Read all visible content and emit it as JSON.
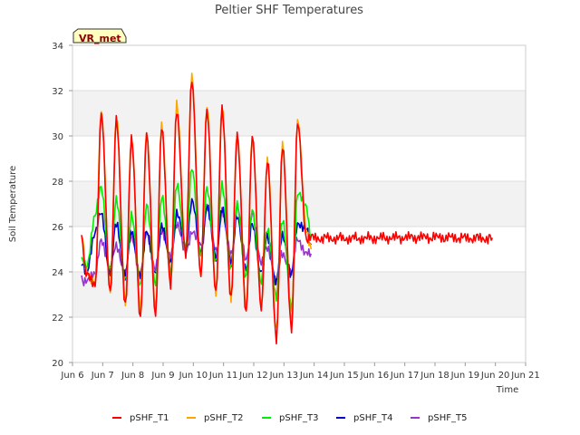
{
  "chart_data": {
    "type": "line",
    "title": "Peltier SHF Temperatures",
    "xlabel": "Time",
    "ylabel": "Soil Temperature",
    "badge": "VR_met",
    "ylim": [
      20,
      34
    ],
    "xlim": [
      6,
      21
    ],
    "yticks": [
      20,
      22,
      24,
      26,
      28,
      30,
      32,
      34
    ],
    "xticks": [
      {
        "v": 6,
        "label": "Jun 6"
      },
      {
        "v": 7,
        "label": "Jun 7"
      },
      {
        "v": 8,
        "label": "Jun 8"
      },
      {
        "v": 9,
        "label": "Jun 9"
      },
      {
        "v": 10,
        "label": "Jun 10"
      },
      {
        "v": 11,
        "label": "Jun 11"
      },
      {
        "v": 12,
        "label": "Jun 12"
      },
      {
        "v": 13,
        "label": "Jun 13"
      },
      {
        "v": 14,
        "label": "Jun 14"
      },
      {
        "v": 15,
        "label": "Jun 15"
      },
      {
        "v": 16,
        "label": "Jun 16"
      },
      {
        "v": 17,
        "label": "Jun 17"
      },
      {
        "v": 18,
        "label": "Jun 18"
      },
      {
        "v": 19,
        "label": "Jun 19"
      },
      {
        "v": 20,
        "label": "Jun 20"
      },
      {
        "v": 21,
        "label": "Jun 21"
      }
    ],
    "grid": true,
    "legend_position": "bottom",
    "series": [
      {
        "name": "pSHF_T1",
        "color": "#ff0000",
        "x": [
          6.3,
          6.45,
          6.75,
          6.95,
          7.25,
          7.45,
          7.75,
          7.95,
          8.25,
          8.45,
          8.75,
          8.95,
          9.25,
          9.45,
          9.75,
          9.95,
          10.25,
          10.45,
          10.75,
          10.95,
          11.25,
          11.45,
          11.75,
          11.95,
          12.25,
          12.45,
          12.75,
          12.95,
          13.25,
          13.45,
          13.75,
          13.95,
          14.25,
          14.45,
          14.75,
          14.95,
          15.25,
          15.45,
          15.75,
          15.95,
          16.25,
          16.45,
          16.75,
          16.95,
          17.25,
          17.45,
          17.75,
          17.95,
          18.25,
          18.45,
          18.75,
          18.95,
          19.25,
          19.45,
          19.75,
          19.9
        ],
        "y": [
          25.4,
          24.0,
          23.3,
          31.0,
          23.0,
          30.7,
          22.5,
          29.8,
          22.0,
          30.0,
          22.2,
          30.3,
          23.5,
          31.1,
          24.8,
          32.5,
          23.8,
          31.2,
          23.0,
          31.3,
          22.7,
          30.1,
          22.1,
          30.0,
          22.3,
          28.9,
          21.0,
          29.5,
          21.5,
          30.5,
          25.5,
          25.5,
          25.5,
          25.5,
          25.5,
          25.5,
          25.5,
          25.5,
          25.5,
          25.5,
          25.5,
          25.5,
          25.5,
          25.5,
          25.5,
          25.5,
          25.5,
          25.5,
          25.5,
          25.5,
          25.5,
          25.5,
          25.5,
          25.5,
          25.5,
          25.5
        ]
      },
      {
        "name": "pSHF_T2",
        "color": "#ffa500",
        "x": [
          6.3,
          6.45,
          6.75,
          6.95,
          7.25,
          7.45,
          7.75,
          7.95,
          8.25,
          8.45,
          8.75,
          8.95,
          9.25,
          9.45,
          9.75,
          9.95,
          10.25,
          10.45,
          10.75,
          10.95,
          11.25,
          11.45,
          11.75,
          11.95,
          12.25,
          12.45,
          12.75,
          12.95,
          13.25,
          13.45,
          13.75,
          13.9
        ],
        "y": [
          25.6,
          24.1,
          23.4,
          31.2,
          23.1,
          30.9,
          22.6,
          29.9,
          22.3,
          30.1,
          22.4,
          30.4,
          23.6,
          31.3,
          24.9,
          32.6,
          23.9,
          31.3,
          23.1,
          31.4,
          22.8,
          30.2,
          22.3,
          30.0,
          22.4,
          29.0,
          21.3,
          29.6,
          21.8,
          30.6,
          25.8,
          25.0
        ]
      },
      {
        "name": "pSHF_T3",
        "color": "#00ee00",
        "x": [
          6.3,
          6.45,
          6.75,
          6.95,
          7.25,
          7.45,
          7.75,
          7.95,
          8.25,
          8.45,
          8.75,
          8.95,
          9.25,
          9.45,
          9.75,
          9.95,
          10.25,
          10.45,
          10.75,
          10.95,
          11.25,
          11.45,
          11.75,
          11.95,
          12.25,
          12.45,
          12.75,
          12.95,
          13.25,
          13.45,
          13.75,
          13.9
        ],
        "y": [
          24.6,
          24.2,
          26.5,
          27.8,
          24.0,
          27.3,
          23.5,
          26.6,
          23.3,
          27.0,
          23.4,
          27.3,
          24.0,
          27.8,
          25.0,
          28.5,
          24.8,
          27.6,
          24.5,
          27.8,
          24.2,
          27.0,
          23.8,
          26.8,
          23.5,
          26.0,
          22.8,
          26.4,
          22.3,
          27.5,
          26.8,
          25.5
        ]
      },
      {
        "name": "pSHF_T4",
        "color": "#0000cc",
        "x": [
          6.3,
          6.45,
          6.75,
          6.95,
          7.25,
          7.45,
          7.75,
          7.95,
          8.25,
          8.45,
          8.75,
          8.95,
          9.25,
          9.45,
          9.75,
          9.95,
          10.25,
          10.45,
          10.75,
          10.95,
          11.25,
          11.45,
          11.75,
          11.95,
          12.25,
          12.45,
          12.75,
          12.95,
          13.25,
          13.45,
          13.75,
          13.9
        ],
        "y": [
          24.5,
          23.9,
          25.8,
          26.6,
          24.0,
          26.2,
          23.8,
          25.9,
          23.7,
          25.9,
          23.8,
          26.1,
          24.3,
          26.6,
          25.0,
          27.1,
          24.9,
          26.8,
          24.7,
          26.7,
          24.5,
          26.4,
          24.2,
          26.1,
          24.0,
          25.6,
          23.5,
          25.7,
          23.8,
          26.2,
          25.8,
          25.2
        ]
      },
      {
        "name": "pSHF_T5",
        "color": "#9933cc",
        "x": [
          6.3,
          6.45,
          6.75,
          6.95,
          7.25,
          7.45,
          7.75,
          7.95,
          8.25,
          8.45,
          8.75,
          8.95,
          9.25,
          9.45,
          9.75,
          9.95,
          10.25,
          10.45,
          10.75,
          10.95,
          11.25,
          11.45,
          11.75,
          11.95,
          12.25,
          12.45,
          12.75,
          12.95,
          13.25,
          13.45,
          13.75,
          13.9
        ],
        "y": [
          23.7,
          23.5,
          24.0,
          25.3,
          24.2,
          25.1,
          24.0,
          25.6,
          23.9,
          25.8,
          24.1,
          25.9,
          24.6,
          26.2,
          24.8,
          25.8,
          25.1,
          26.9,
          24.9,
          26.6,
          24.8,
          26.8,
          24.6,
          26.5,
          24.5,
          25.0,
          23.7,
          24.8,
          24.0,
          25.5,
          24.8,
          24.8
        ]
      }
    ]
  }
}
